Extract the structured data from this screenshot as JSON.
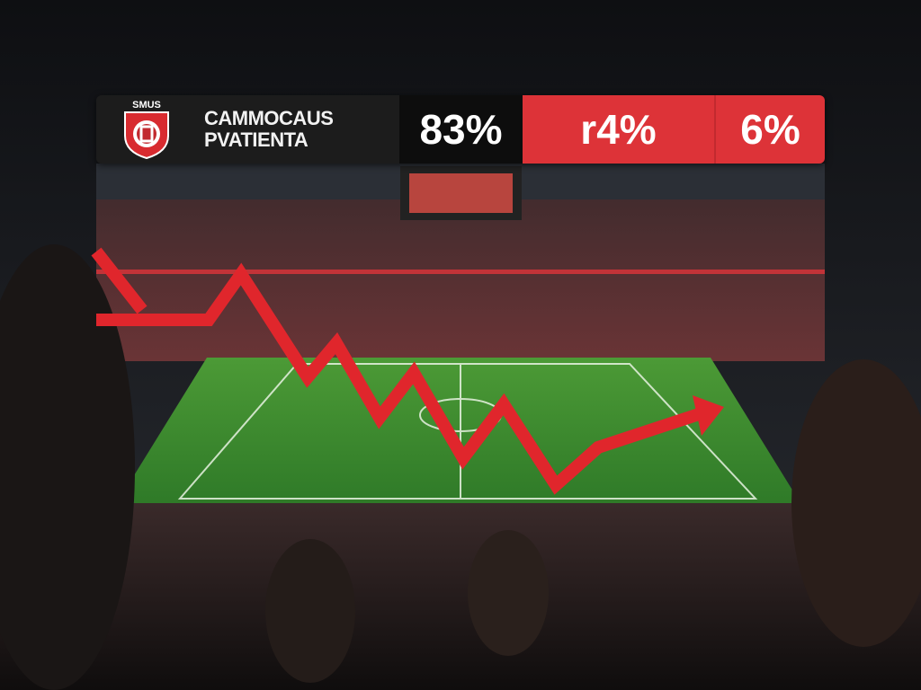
{
  "overlay": {
    "crest_text": "SMUS",
    "team_line1": "CAMMOCAUS",
    "team_line2": "PVATIENTA",
    "stats": [
      "83%",
      "r4%",
      "6%"
    ]
  },
  "colors": {
    "accent_red": "#dd3338",
    "panel_dark": "#1c1c1c",
    "pitch_green": "#3f8a2e"
  },
  "trend_arrow": {
    "direction": "down-then-up",
    "color": "#e0262c"
  }
}
